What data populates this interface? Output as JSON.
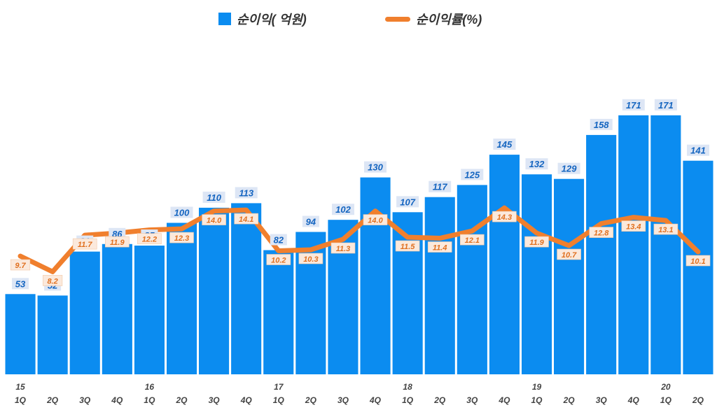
{
  "chart_data": {
    "type": "bar",
    "title": "",
    "legend": [
      "순이익( 억원)",
      "순이익률(%)"
    ],
    "legend_placement": "top-center",
    "categories": [
      "15 1Q",
      "2Q",
      "3Q",
      "4Q",
      "16 1Q",
      "2Q",
      "3Q",
      "4Q",
      "17 1Q",
      "2Q",
      "3Q",
      "4Q",
      "18 1Q",
      "2Q",
      "3Q",
      "4Q",
      "19 1Q",
      "2Q",
      "3Q",
      "4Q",
      "20 1Q",
      "2Q"
    ],
    "x_tick_years": [
      "15",
      "",
      "",
      "",
      "16",
      "",
      "",
      "",
      "17",
      "",
      "",
      "",
      "18",
      "",
      "",
      "",
      "19",
      "",
      "",
      "",
      "20",
      ""
    ],
    "x_tick_quarters": [
      "1Q",
      "2Q",
      "3Q",
      "4Q",
      "1Q",
      "2Q",
      "3Q",
      "4Q",
      "1Q",
      "2Q",
      "3Q",
      "4Q",
      "1Q",
      "2Q",
      "3Q",
      "4Q",
      "1Q",
      "2Q",
      "3Q",
      "4Q",
      "1Q",
      "2Q"
    ],
    "series": [
      {
        "name": "순이익( 억원)",
        "type": "bar",
        "color": "#0b8cf0",
        "values": [
          53,
          52,
          81,
          86,
          85,
          100,
          110,
          113,
          82,
          94,
          102,
          130,
          107,
          117,
          125,
          145,
          132,
          129,
          158,
          171,
          171,
          141
        ],
        "labels": [
          "53",
          "52",
          "81",
          "86",
          "85",
          "100",
          "110",
          "113",
          "82",
          "94",
          "102",
          "130",
          "107",
          "117",
          "125",
          "145",
          "132",
          "129",
          "158",
          "171",
          "171",
          "141"
        ]
      },
      {
        "name": "순이익률(%)",
        "type": "line",
        "color": "#f07f2d",
        "values": [
          9.7,
          8.2,
          11.7,
          11.9,
          12.2,
          12.3,
          14.0,
          14.1,
          10.2,
          10.3,
          11.3,
          14.0,
          11.5,
          11.4,
          12.1,
          14.3,
          11.9,
          10.7,
          12.8,
          13.4,
          13.1,
          10.1
        ],
        "labels": [
          "9.7",
          "8.2",
          "11.7",
          "11.9",
          "12.2",
          "12.3",
          "14.0",
          "14.1",
          "10.2",
          "10.3",
          "11.3",
          "14.0",
          "11.5",
          "11.4",
          "12.1",
          "14.3",
          "11.9",
          "10.7",
          "12.8",
          "13.4",
          "13.1",
          "10.1"
        ]
      }
    ],
    "y_bar_range": [
      0,
      200
    ],
    "y_line_range": [
      0,
      20
    ],
    "grid": false
  }
}
